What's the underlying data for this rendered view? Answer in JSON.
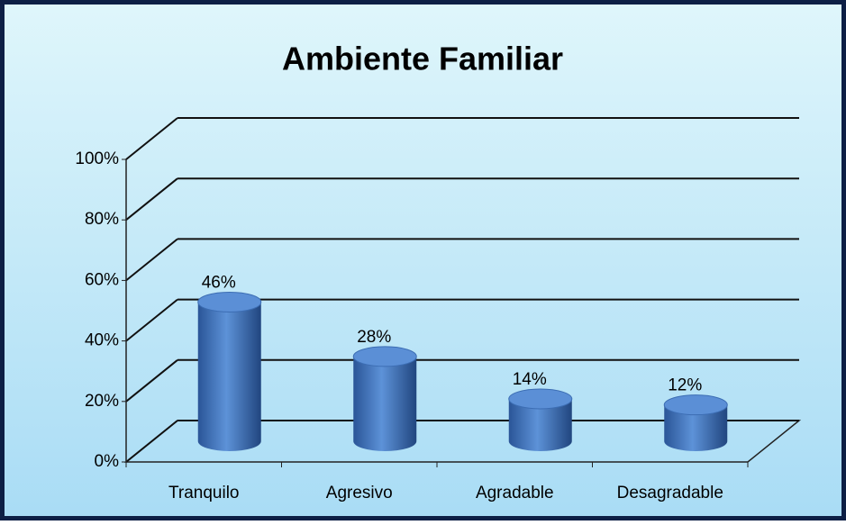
{
  "chart_data": {
    "type": "cylinder_bar",
    "title": "Ambiente Familiar",
    "categories": [
      "Tranquilo",
      "Agresivo",
      "Agradable",
      "Desagradable"
    ],
    "values": [
      46,
      28,
      14,
      12
    ],
    "value_labels": [
      "46%",
      "28%",
      "14%",
      "12%"
    ],
    "color": "#4a7ec8",
    "ylim": [
      0,
      100
    ],
    "yticks": [
      {
        "value": 0,
        "label": "0%"
      },
      {
        "value": 20,
        "label": "20%"
      },
      {
        "value": 40,
        "label": "40%"
      },
      {
        "value": 60,
        "label": "60%"
      },
      {
        "value": 80,
        "label": "80%"
      },
      {
        "value": 100,
        "label": "100%"
      }
    ],
    "grid": true
  }
}
